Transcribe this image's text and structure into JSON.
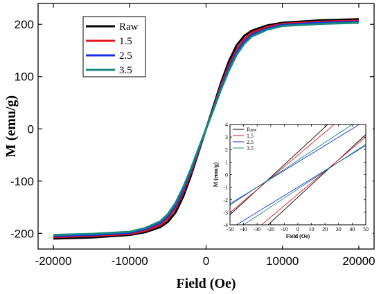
{
  "chart_data": [
    {
      "type": "line",
      "xlabel": "Field (Oe)",
      "ylabel": "M (emu/g)",
      "xlim": [
        -22000,
        22000
      ],
      "ylim": [
        -230,
        240
      ],
      "x_ticks": [
        -20000,
        -10000,
        0,
        10000,
        20000
      ],
      "x_tick_labels": [
        "-20000",
        "-10000",
        "0",
        "10000",
        "20000"
      ],
      "y_ticks": [
        -200,
        -100,
        0,
        100,
        200
      ],
      "y_tick_labels": [
        "-200",
        "-100",
        "0",
        "100",
        "200"
      ],
      "legend_position": "top-left",
      "grid": false,
      "x": [
        -20000,
        -15000,
        -10000,
        -8000,
        -6000,
        -5000,
        -4000,
        -3000,
        -2000,
        -1000,
        0,
        1000,
        2000,
        3000,
        4000,
        5000,
        6000,
        8000,
        10000,
        15000,
        20000
      ],
      "series": [
        {
          "name": "Raw",
          "color": "#000000",
          "values": [
            -210,
            -208,
            -203,
            -198,
            -188,
            -178,
            -160,
            -130,
            -90,
            -45,
            0,
            45,
            90,
            130,
            160,
            178,
            188,
            198,
            203,
            208,
            210
          ]
        },
        {
          "name": "1.5",
          "color": "#e8141c",
          "values": [
            -207,
            -205,
            -201,
            -195,
            -184,
            -172,
            -152,
            -122,
            -84,
            -42,
            0,
            42,
            84,
            122,
            152,
            172,
            184,
            195,
            201,
            205,
            207
          ]
        },
        {
          "name": "2.5",
          "color": "#1a2ee8",
          "values": [
            -205,
            -203,
            -199,
            -192,
            -180,
            -167,
            -147,
            -117,
            -80,
            -40,
            0,
            40,
            80,
            117,
            147,
            167,
            180,
            192,
            199,
            203,
            205
          ]
        },
        {
          "name": "3.5",
          "color": "#138a7c",
          "values": [
            -203,
            -201,
            -197,
            -190,
            -177,
            -163,
            -142,
            -112,
            -77,
            -38,
            0,
            38,
            77,
            112,
            142,
            163,
            177,
            190,
            197,
            201,
            203
          ]
        }
      ]
    },
    {
      "type": "line",
      "xlabel": "Field (Oe)",
      "ylabel": "M (emu/g)",
      "xlim": [
        -50,
        50
      ],
      "ylim": [
        -4,
        4
      ],
      "x_ticks": [
        -50,
        -40,
        -30,
        -20,
        -10,
        0,
        10,
        20,
        30,
        40,
        50
      ],
      "x_tick_labels": [
        "-50",
        "-40",
        "-30",
        "-20",
        "-10",
        "0",
        "10",
        "20",
        "30",
        "40",
        "50"
      ],
      "y_ticks": [
        -4,
        -3,
        -2,
        -1,
        0,
        1,
        2,
        3,
        4
      ],
      "y_tick_labels": [
        "-4",
        "-3",
        "-2",
        "-1",
        "0",
        "1",
        "2",
        "3",
        "4"
      ],
      "legend_position": "top-left",
      "grid": false,
      "series": [
        {
          "name": "Raw",
          "color": "#000000",
          "slope": 0.1,
          "coercivity": 18
        },
        {
          "name": "1.5",
          "color": "#e8141c",
          "slope": 0.0915,
          "coercivity": 17
        },
        {
          "name": "2.5",
          "color": "#1a2ee8",
          "slope": 0.0665,
          "coercivity": 15
        },
        {
          "name": "3.5",
          "color": "#138a7c",
          "slope": 0.0715,
          "coercivity": 16
        }
      ]
    }
  ]
}
